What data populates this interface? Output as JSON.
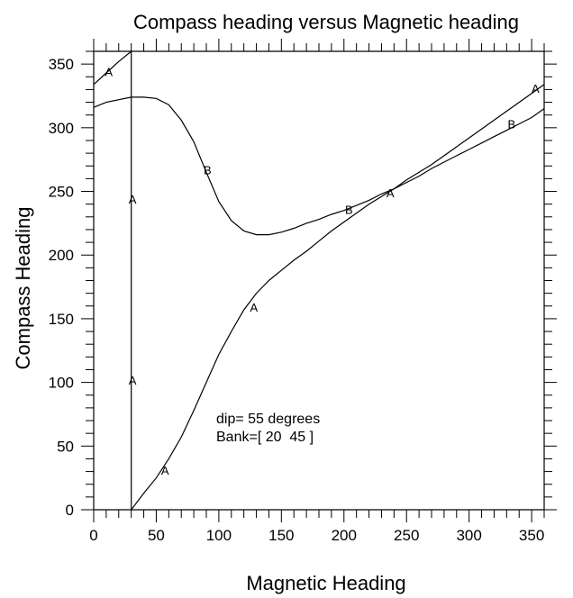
{
  "chart_data": {
    "type": "line",
    "title": "Compass heading versus Magnetic heading",
    "xlabel": "Magnetic Heading",
    "ylabel": "Compass Heading",
    "xlim": [
      0,
      360
    ],
    "ylim": [
      0,
      360
    ],
    "xticks": [
      0,
      50,
      100,
      150,
      200,
      250,
      300,
      350
    ],
    "yticks": [
      0,
      50,
      100,
      150,
      200,
      250,
      300,
      350
    ],
    "x_minor_step": 10,
    "y_minor_step": 10,
    "grid": false,
    "annotation_lines": [
      "dip= 55 degrees",
      "Bank=[ 20  45 ]"
    ],
    "series": [
      {
        "marker": "A",
        "x": [
          0,
          10,
          20,
          30,
          30,
          30,
          30,
          40,
          50,
          60,
          70,
          80,
          90,
          100,
          110,
          120,
          130,
          140,
          150,
          160,
          170,
          180,
          190,
          200,
          210,
          220,
          230,
          240,
          250,
          260,
          270,
          280,
          290,
          300,
          310,
          320,
          330,
          340,
          350,
          360
        ],
        "y": [
          334,
          343,
          352,
          360,
          250,
          100,
          0,
          13,
          25,
          40,
          57,
          78,
          100,
          122,
          140,
          157,
          170,
          180,
          188,
          196,
          203,
          211,
          219,
          226,
          233,
          240,
          246,
          252,
          259,
          265,
          271,
          278,
          285,
          292,
          299,
          306,
          313,
          320,
          327,
          334
        ],
        "marker_points": [
          [
            12,
            344
          ],
          [
            31,
            244
          ],
          [
            31,
            102
          ],
          [
            57,
            31
          ],
          [
            128,
            159
          ],
          [
            237,
            249
          ],
          [
            353,
            331
          ]
        ]
      },
      {
        "marker": "B",
        "x": [
          0,
          10,
          20,
          30,
          40,
          50,
          60,
          70,
          80,
          90,
          100,
          110,
          120,
          130,
          140,
          150,
          160,
          170,
          180,
          190,
          200,
          210,
          220,
          230,
          240,
          250,
          260,
          270,
          280,
          290,
          300,
          310,
          320,
          330,
          340,
          350,
          360
        ],
        "y": [
          316,
          320,
          322,
          324,
          324,
          323,
          318,
          306,
          289,
          265,
          242,
          227,
          219,
          216,
          216,
          218,
          221,
          225,
          228,
          232,
          235,
          239,
          243,
          248,
          252,
          257,
          262,
          268,
          273,
          278,
          283,
          288,
          293,
          298,
          303,
          308,
          315
        ],
        "marker_points": [
          [
            91,
            267
          ],
          [
            204,
            236
          ],
          [
            334,
            303
          ]
        ]
      }
    ]
  }
}
